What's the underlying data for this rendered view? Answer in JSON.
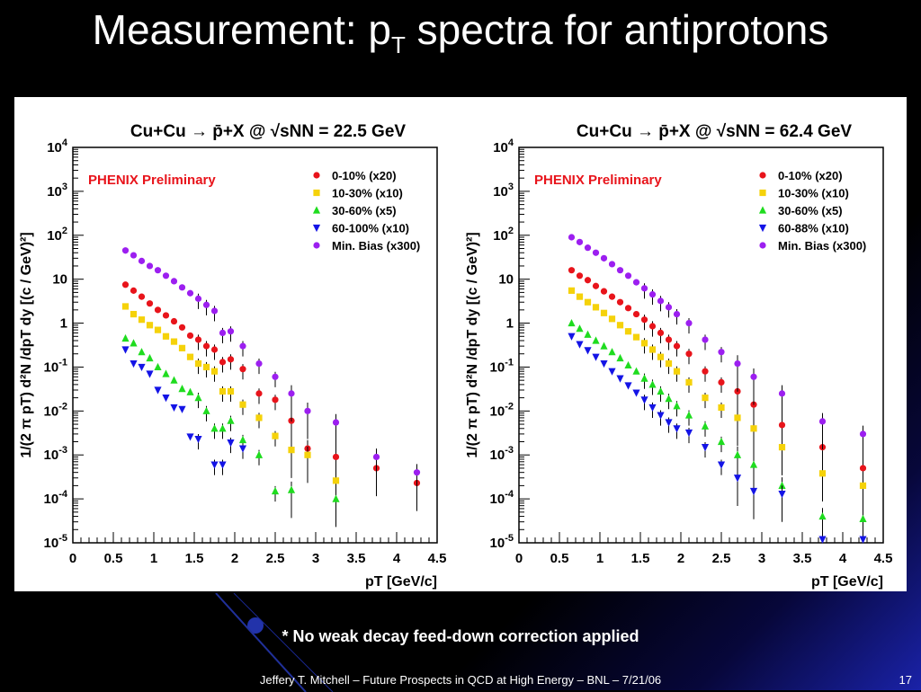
{
  "slide": {
    "title_main": "Measurement: p",
    "title_sub": "T",
    "title_rest": " spectra for antiprotons",
    "note": "* No weak decay feed-down correction applied",
    "footer": "Jeffery T. Mitchell – Future Prospects in QCD at High Energy – BNL – 7/21/06",
    "slide_number": "17"
  },
  "chart_data": [
    {
      "type": "scatter",
      "title": "Cu+Cu → p̄+X @ √sNN = 22.5 GeV",
      "xlabel": "pT [GeV/c]",
      "ylabel": "1/(2 π pT) d²N /dpT dy [(c / GeV)²]",
      "annotation": "PHENIX Preliminary",
      "xlim": [
        0,
        4.5
      ],
      "ylim": [
        1e-05,
        10000.0
      ],
      "yscale": "log",
      "xticks": [
        "0",
        "0.5",
        "1",
        "1.5",
        "2",
        "2.5",
        "3",
        "3.5",
        "4",
        "4.5"
      ],
      "yticks": [
        "10^-5",
        "10^-4",
        "10^-3",
        "10^-2",
        "10^-1",
        "1",
        "10",
        "10^2",
        "10^3",
        "10^4"
      ],
      "legend_position": "top-right",
      "series": [
        {
          "name": "0-10% (x20)",
          "color": "#e8141b",
          "marker": "circle",
          "x": [
            0.65,
            0.75,
            0.85,
            0.95,
            1.05,
            1.15,
            1.25,
            1.35,
            1.45,
            1.55,
            1.65,
            1.75,
            1.85,
            1.95,
            2.1,
            2.3,
            2.5,
            2.7,
            2.9,
            3.25,
            3.75,
            4.25
          ],
          "y": [
            7.5,
            5.5,
            4.0,
            2.8,
            2.0,
            1.5,
            1.1,
            0.8,
            0.52,
            0.42,
            0.3,
            0.25,
            0.13,
            0.15,
            0.09,
            0.025,
            0.018,
            0.006,
            0.0014,
            0.0009,
            0.0005,
            0.00023
          ]
        },
        {
          "name": "10-30% (x10)",
          "color": "#f5d20a",
          "marker": "square",
          "x": [
            0.65,
            0.75,
            0.85,
            0.95,
            1.05,
            1.15,
            1.25,
            1.35,
            1.45,
            1.55,
            1.65,
            1.75,
            1.85,
            1.95,
            2.1,
            2.3,
            2.5,
            2.7,
            2.9,
            3.25
          ],
          "y": [
            2.4,
            1.6,
            1.2,
            0.9,
            0.7,
            0.5,
            0.38,
            0.27,
            0.17,
            0.12,
            0.1,
            0.08,
            0.028,
            0.028,
            0.014,
            0.007,
            0.0027,
            0.0013,
            0.001,
            0.00026
          ]
        },
        {
          "name": "30-60% (x5)",
          "color": "#1fdc1f",
          "marker": "triangle-up",
          "x": [
            0.65,
            0.75,
            0.85,
            0.95,
            1.05,
            1.15,
            1.25,
            1.35,
            1.45,
            1.55,
            1.65,
            1.75,
            1.85,
            1.95,
            2.1,
            2.3,
            2.5,
            2.7,
            3.25
          ],
          "y": [
            0.45,
            0.35,
            0.22,
            0.16,
            0.1,
            0.07,
            0.05,
            0.032,
            0.027,
            0.02,
            0.01,
            0.004,
            0.004,
            0.006,
            0.0022,
            0.001,
            0.00015,
            0.00016,
            0.0001
          ]
        },
        {
          "name": "60-100% (x10)",
          "color": "#1414e6",
          "marker": "triangle-down",
          "x": [
            0.65,
            0.75,
            0.85,
            0.95,
            1.05,
            1.15,
            1.25,
            1.35,
            1.45,
            1.55,
            1.75,
            1.85,
            1.95,
            2.1
          ],
          "y": [
            0.25,
            0.12,
            0.1,
            0.07,
            0.03,
            0.02,
            0.012,
            0.011,
            0.0026,
            0.0023,
            0.0006,
            0.0006,
            0.0019,
            0.0014
          ]
        },
        {
          "name": "Min. Bias (x300)",
          "color": "#9c1ff0",
          "marker": "circle",
          "x": [
            0.65,
            0.75,
            0.85,
            0.95,
            1.05,
            1.15,
            1.25,
            1.35,
            1.45,
            1.55,
            1.65,
            1.75,
            1.85,
            1.95,
            2.1,
            2.3,
            2.5,
            2.7,
            2.9,
            3.25,
            3.75,
            4.25
          ],
          "y": [
            45,
            35,
            26,
            20,
            16,
            12,
            9,
            6.5,
            4.8,
            3.6,
            2.6,
            1.9,
            0.6,
            0.65,
            0.3,
            0.12,
            0.06,
            0.025,
            0.01,
            0.0055,
            0.0009,
            0.0004
          ]
        }
      ]
    },
    {
      "type": "scatter",
      "title": "Cu+Cu → p̄+X @ √sNN = 62.4 GeV",
      "xlabel": "pT [GeV/c]",
      "ylabel": "1/(2 π pT) d²N /dpT dy [(c / GeV)²]",
      "annotation": "PHENIX Preliminary",
      "xlim": [
        0,
        4.5
      ],
      "ylim": [
        1e-05,
        10000.0
      ],
      "yscale": "log",
      "xticks": [
        "0",
        "0.5",
        "1",
        "1.5",
        "2",
        "2.5",
        "3",
        "3.5",
        "4",
        "4.5"
      ],
      "yticks": [
        "10^-5",
        "10^-4",
        "10^-3",
        "10^-2",
        "10^-1",
        "1",
        "10",
        "10^2",
        "10^3",
        "10^4"
      ],
      "legend_position": "top-right",
      "series": [
        {
          "name": "0-10% (x20)",
          "color": "#e8141b",
          "marker": "circle",
          "x": [
            0.65,
            0.75,
            0.85,
            0.95,
            1.05,
            1.15,
            1.25,
            1.35,
            1.45,
            1.55,
            1.65,
            1.75,
            1.85,
            1.95,
            2.1,
            2.3,
            2.5,
            2.7,
            2.9,
            3.25,
            3.75,
            4.25
          ],
          "y": [
            16,
            12,
            9.5,
            7,
            5.3,
            4,
            3,
            2.2,
            1.6,
            1.2,
            0.85,
            0.6,
            0.42,
            0.3,
            0.2,
            0.08,
            0.045,
            0.028,
            0.014,
            0.0048,
            0.0015,
            0.0005
          ]
        },
        {
          "name": "10-30% (x10)",
          "color": "#f5d20a",
          "marker": "square",
          "x": [
            0.65,
            0.75,
            0.85,
            0.95,
            1.05,
            1.15,
            1.25,
            1.35,
            1.45,
            1.55,
            1.65,
            1.75,
            1.85,
            1.95,
            2.1,
            2.3,
            2.5,
            2.7,
            2.9,
            3.25,
            3.75,
            4.25
          ],
          "y": [
            5.5,
            4,
            3,
            2.3,
            1.7,
            1.25,
            0.9,
            0.65,
            0.48,
            0.35,
            0.25,
            0.17,
            0.12,
            0.08,
            0.045,
            0.02,
            0.012,
            0.007,
            0.004,
            0.0015,
            0.00038,
            0.0002
          ]
        },
        {
          "name": "30-60% (x5)",
          "color": "#1fdc1f",
          "marker": "triangle-up",
          "x": [
            0.65,
            0.75,
            0.85,
            0.95,
            1.05,
            1.15,
            1.25,
            1.35,
            1.45,
            1.55,
            1.65,
            1.75,
            1.85,
            1.95,
            2.1,
            2.3,
            2.5,
            2.7,
            2.9,
            3.25,
            3.75,
            4.25
          ],
          "y": [
            1.0,
            0.75,
            0.55,
            0.4,
            0.3,
            0.22,
            0.16,
            0.11,
            0.08,
            0.055,
            0.04,
            0.028,
            0.019,
            0.013,
            0.008,
            0.0045,
            0.002,
            0.001,
            0.0006,
            0.0002,
            4e-05,
            3.5e-05
          ]
        },
        {
          "name": "60-88% (x10)",
          "color": "#1414e6",
          "marker": "triangle-down",
          "x": [
            0.65,
            0.75,
            0.85,
            0.95,
            1.05,
            1.15,
            1.25,
            1.35,
            1.45,
            1.55,
            1.65,
            1.75,
            1.85,
            1.95,
            2.1,
            2.3,
            2.5,
            2.7,
            2.9,
            3.25,
            3.75,
            4.25
          ],
          "y": [
            0.5,
            0.33,
            0.24,
            0.17,
            0.12,
            0.08,
            0.055,
            0.038,
            0.026,
            0.018,
            0.012,
            0.008,
            0.0055,
            0.004,
            0.0032,
            0.0015,
            0.0006,
            0.0003,
            0.00015,
            0.00013,
            1.2e-05,
            1.2e-05
          ]
        },
        {
          "name": "Min. Bias (x300)",
          "color": "#9c1ff0",
          "marker": "circle",
          "x": [
            0.65,
            0.75,
            0.85,
            0.95,
            1.05,
            1.15,
            1.25,
            1.35,
            1.45,
            1.55,
            1.65,
            1.75,
            1.85,
            1.95,
            2.1,
            2.3,
            2.5,
            2.7,
            2.9,
            3.25,
            3.75,
            4.25
          ],
          "y": [
            90,
            70,
            52,
            40,
            30,
            22,
            16,
            12,
            8.5,
            6.2,
            4.5,
            3.2,
            2.3,
            1.6,
            1.0,
            0.42,
            0.22,
            0.12,
            0.06,
            0.025,
            0.0058,
            0.003
          ]
        }
      ]
    }
  ]
}
